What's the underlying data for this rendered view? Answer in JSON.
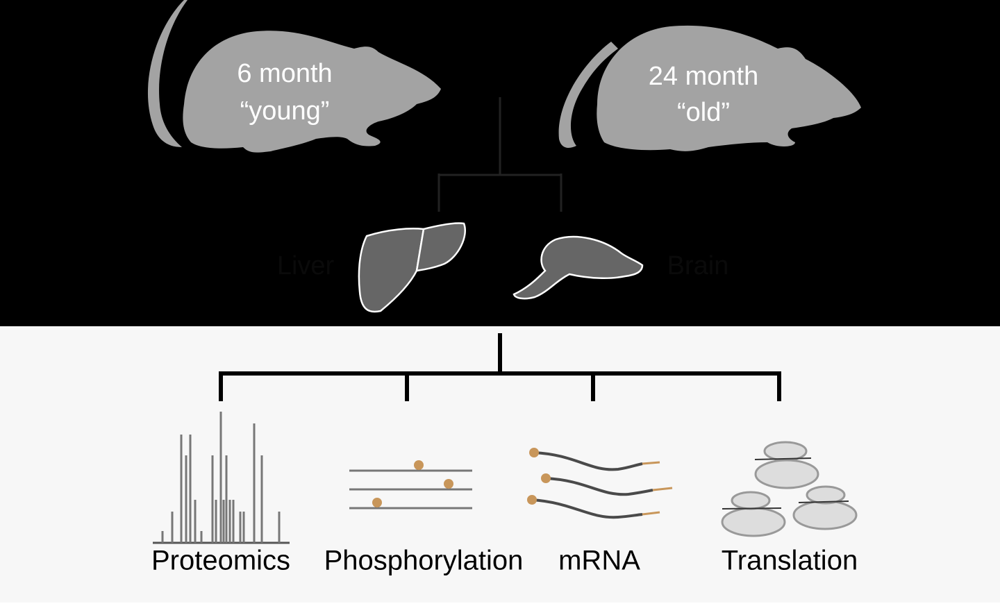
{
  "groups": [
    {
      "line1": "6 month",
      "line2": "“young”"
    },
    {
      "line1": "24 month",
      "line2": "“old”"
    }
  ],
  "organs": [
    "Liver",
    "Brain"
  ],
  "methods": [
    "Proteomics",
    "Phosphorylation",
    "mRNA",
    "Translation"
  ]
}
